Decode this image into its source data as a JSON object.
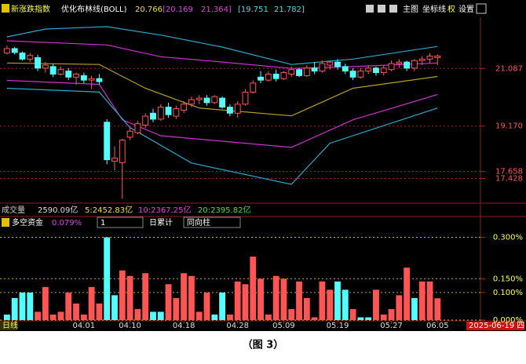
{
  "page": {
    "toolbar": [
      "主图",
      "坐标线",
      "权",
      "设置"
    ],
    "volume_info": {
      "label": "成交量",
      "values": [
        "2590.09亿",
        "5:2452.83亿",
        "10:2367.25亿",
        "20:2395.82亿"
      ]
    },
    "period": "日线",
    "date_label": "2025-06-19 四",
    "caption": "（图 3）"
  },
  "chart_data": [
    {
      "type": "candlestick",
      "title": "新涨跌指数",
      "indicator": "优化布林线(BOLL)",
      "indicator_values": [
        "20.766",
        "[20.169",
        "21.364]",
        "[19.751",
        "21.782]"
      ],
      "up_color": "#ff5555",
      "down_color": "#54ffff",
      "ohlc": [
        [
          21.6,
          21.85,
          21.55,
          21.75
        ],
        [
          21.75,
          21.8,
          21.55,
          21.62
        ],
        [
          21.6,
          21.65,
          21.35,
          21.4
        ],
        [
          21.4,
          21.6,
          21.3,
          21.52
        ],
        [
          21.45,
          21.55,
          21.0,
          21.1
        ],
        [
          21.1,
          21.3,
          20.95,
          21.2
        ],
        [
          21.15,
          21.25,
          20.8,
          20.9
        ],
        [
          20.9,
          21.15,
          20.85,
          21.05
        ],
        [
          21.0,
          21.1,
          20.7,
          20.8
        ],
        [
          20.8,
          20.95,
          20.55,
          20.9
        ],
        [
          20.85,
          20.95,
          20.6,
          20.7
        ],
        [
          20.7,
          20.85,
          20.4,
          20.75
        ],
        [
          20.75,
          20.9,
          20.55,
          20.65
        ],
        [
          19.3,
          19.4,
          17.9,
          18.05
        ],
        [
          18.0,
          18.5,
          17.7,
          18.1
        ],
        [
          17.95,
          18.75,
          16.75,
          18.7
        ],
        [
          18.8,
          19.1,
          18.7,
          19.0
        ],
        [
          18.95,
          19.35,
          18.9,
          19.25
        ],
        [
          19.2,
          19.6,
          19.1,
          19.5
        ],
        [
          19.6,
          19.75,
          19.3,
          19.4
        ],
        [
          19.4,
          19.9,
          19.35,
          19.8
        ],
        [
          19.8,
          19.95,
          19.45,
          19.55
        ],
        [
          19.5,
          19.85,
          19.4,
          19.75
        ],
        [
          19.7,
          20.0,
          19.6,
          19.9
        ],
        [
          19.9,
          20.15,
          19.8,
          20.05
        ],
        [
          20.05,
          20.2,
          19.9,
          20.1
        ],
        [
          20.1,
          20.2,
          19.85,
          19.95
        ],
        [
          19.95,
          20.2,
          19.9,
          20.15
        ],
        [
          20.1,
          20.15,
          19.75,
          19.8
        ],
        [
          19.8,
          19.9,
          19.5,
          19.6
        ],
        [
          19.6,
          20.0,
          19.45,
          19.9
        ],
        [
          19.9,
          20.4,
          19.85,
          20.3
        ],
        [
          20.3,
          20.7,
          20.25,
          20.6
        ],
        [
          20.8,
          21.0,
          20.6,
          20.7
        ],
        [
          20.7,
          21.0,
          20.65,
          20.9
        ],
        [
          20.9,
          21.05,
          20.65,
          20.75
        ],
        [
          20.75,
          21.0,
          20.7,
          20.95
        ],
        [
          20.9,
          21.15,
          20.8,
          21.05
        ],
        [
          21.05,
          21.1,
          20.8,
          20.85
        ],
        [
          20.85,
          21.2,
          20.8,
          21.1
        ],
        [
          21.1,
          21.3,
          20.9,
          21.0
        ],
        [
          21.0,
          21.35,
          20.95,
          21.25
        ],
        [
          21.2,
          21.35,
          21.05,
          21.3
        ],
        [
          21.3,
          21.4,
          21.05,
          21.15
        ],
        [
          21.15,
          21.25,
          20.9,
          21.0
        ],
        [
          21.0,
          21.1,
          20.7,
          20.8
        ],
        [
          20.8,
          21.1,
          20.75,
          21.0
        ],
        [
          21.0,
          21.2,
          20.9,
          21.1
        ],
        [
          21.1,
          21.15,
          20.85,
          20.95
        ],
        [
          20.95,
          21.2,
          20.85,
          21.1
        ],
        [
          21.05,
          21.35,
          21.0,
          21.25
        ],
        [
          21.25,
          21.4,
          21.1,
          21.3
        ],
        [
          21.3,
          21.35,
          21.0,
          21.1
        ],
        [
          21.1,
          21.4,
          21.0,
          21.35
        ],
        [
          21.35,
          21.5,
          21.2,
          21.4
        ],
        [
          21.4,
          21.6,
          21.25,
          21.5
        ],
        [
          21.45,
          21.55,
          21.2,
          21.5
        ]
      ],
      "bands": [
        {
          "color": "#2aa8c8",
          "x": [
            0,
            5,
            13,
            20,
            28,
            37,
            45,
            56
          ],
          "values": [
            22.14,
            22.4,
            22.48,
            22.2,
            21.8,
            21.22,
            21.4,
            21.82
          ]
        },
        {
          "color": "#d030d0",
          "x": [
            0,
            13,
            20,
            28,
            37,
            45,
            56
          ],
          "values": [
            22.01,
            21.87,
            21.48,
            21.3,
            21.09,
            21.15,
            21.27
          ]
        },
        {
          "color": "#b8a020",
          "x": [
            0,
            12,
            18,
            25,
            37,
            45,
            56
          ],
          "values": [
            21.27,
            21.22,
            20.43,
            19.77,
            19.51,
            20.43,
            20.82
          ]
        },
        {
          "color": "#d030d0",
          "x": [
            0,
            12,
            15,
            20,
            37,
            45,
            56
          ],
          "values": [
            20.69,
            20.56,
            19.38,
            18.85,
            18.46,
            19.38,
            20.22
          ]
        },
        {
          "color": "#2aa8c8",
          "x": [
            0,
            12,
            16,
            24,
            37,
            42,
            56
          ],
          "values": [
            20.43,
            20.3,
            19.12,
            17.94,
            17.23,
            18.6,
            19.77
          ]
        }
      ],
      "xlim": [
        -0.5,
        57.5
      ],
      "ylim": [
        16.63,
        22.74
      ],
      "yticks": [
        21.087,
        {
          "value": 19.17,
          "label": "19.170"
        },
        17.658,
        17.428
      ],
      "grid": true
    },
    {
      "type": "bar",
      "title": "多空资金",
      "current_value": "0.079%",
      "controls": [
        "1",
        "日累计",
        "同向柱"
      ],
      "values": [
        0.02,
        0.08,
        0.1,
        0.1,
        0.03,
        0.12,
        0.02,
        0.03,
        0.1,
        0.06,
        0.02,
        0.12,
        0.06,
        0.3,
        0.09,
        0.18,
        0.16,
        0.04,
        0.17,
        0.03,
        0.03,
        0.13,
        0.08,
        0.17,
        0.16,
        0.03,
        0.1,
        0.02,
        0.1,
        0.02,
        0.14,
        0.13,
        0.23,
        0.15,
        0.02,
        0.16,
        0.15,
        0.04,
        0.14,
        0.08,
        0.01,
        0.14,
        0.11,
        0.14,
        0.11,
        0.04,
        0.01,
        0.01,
        0.11,
        0.02,
        0.04,
        0.09,
        0.19,
        0.08,
        0.14,
        0.14,
        0.079
      ],
      "colors": [
        "#54ffff",
        "#54ffff",
        "#54ffff",
        "#54ffff",
        "#ff5555",
        "#ff5555",
        "#ff5555",
        "#ff5555",
        "#ff5555",
        "#ff5555",
        "#ff5555",
        "#ff5555",
        "#ff5555",
        "#54ffff",
        "#54ffff",
        "#ff5555",
        "#ff5555",
        "#ff5555",
        "#ff5555",
        "#54ffff",
        "#54ffff",
        "#ff5555",
        "#ff5555",
        "#ff5555",
        "#ff5555",
        "#ff5555",
        "#ff5555",
        "#54ffff",
        "#54ffff",
        "#ff5555",
        "#ff5555",
        "#ff5555",
        "#ff5555",
        "#ff5555",
        "#ff5555",
        "#ff5555",
        "#ff5555",
        "#ff5555",
        "#ff5555",
        "#ff5555",
        "#ff5555",
        "#ff5555",
        "#ff5555",
        "#54ffff",
        "#54ffff",
        "#ff5555",
        "#54ffff",
        "#54ffff",
        "#ff5555",
        "#ff5555",
        "#ff5555",
        "#ff5555",
        "#ff5555",
        "#54ffff",
        "#ff5555",
        "#ff5555",
        "#ff5555"
      ],
      "xlim": [
        -0.5,
        57.5
      ],
      "ylim": [
        0,
        0.33
      ],
      "yticks": [
        {
          "value": 0.3,
          "label": "0.300%"
        },
        {
          "value": 0.15,
          "label": "0.150%"
        },
        {
          "value": 0.1,
          "label": "0.100%"
        },
        {
          "value": 0,
          "label": "0.000%"
        }
      ],
      "xticks": [
        {
          "value": 10,
          "label": "04.01"
        },
        {
          "value": 16,
          "label": "04.10"
        },
        {
          "value": 23,
          "label": "04.18"
        },
        {
          "value": 30,
          "label": "04.28"
        },
        {
          "value": 36,
          "label": "05.09"
        },
        {
          "value": 43,
          "label": "05.19"
        },
        {
          "value": 50,
          "label": "05.27"
        },
        {
          "value": 56,
          "label": "06.05"
        }
      ],
      "grid": true
    }
  ]
}
